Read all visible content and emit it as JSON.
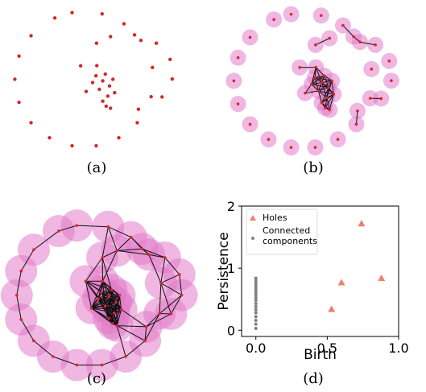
{
  "panels": {
    "a": {
      "caption": "(a)"
    },
    "b": {
      "caption": "(b)"
    },
    "c": {
      "caption": "(c)"
    },
    "d": {
      "caption": "(d)"
    }
  },
  "colors": {
    "point": "#d62728",
    "ball": "#e27bc8",
    "edge": "#111111",
    "hole": "#f0806a",
    "component": "#808080"
  },
  "point_cloud": [
    [
      32,
      38
    ],
    [
      53,
      19
    ],
    [
      79,
      10
    ],
    [
      106,
      7
    ],
    [
      127,
      13
    ],
    [
      143,
      18
    ],
    [
      151,
      23
    ],
    [
      160,
      40
    ],
    [
      151,
      27
    ],
    [
      33,
      23
    ]
  ],
  "chart_data": {
    "type": "scatter",
    "title": "",
    "xlabel": "Birth",
    "ylabel": "Persistence",
    "xlim": [
      -0.1,
      1.0
    ],
    "ylim": [
      -0.1,
      2.0
    ],
    "xticks": [
      "0.0",
      "0.5",
      "1.0"
    ],
    "yticks": [
      "0",
      "1",
      "2"
    ],
    "grid": false,
    "legend_position": "top-left",
    "series": [
      {
        "name": "Holes",
        "marker": "triangle",
        "points": [
          [
            0.53,
            0.34
          ],
          [
            0.6,
            0.77
          ],
          [
            0.74,
            1.72
          ],
          [
            0.88,
            0.84
          ]
        ]
      },
      {
        "name": "Connected components",
        "marker": "circle",
        "points": [
          [
            0.0,
            0.03
          ],
          [
            0.0,
            0.1
          ],
          [
            0.0,
            0.16
          ],
          [
            0.0,
            0.22
          ],
          [
            0.0,
            0.28
          ],
          [
            0.0,
            0.33
          ],
          [
            0.0,
            0.38
          ],
          [
            0.0,
            0.43
          ],
          [
            0.0,
            0.48
          ],
          [
            0.0,
            0.52
          ],
          [
            0.0,
            0.56
          ],
          [
            0.0,
            0.6
          ],
          [
            0.0,
            0.64
          ],
          [
            0.0,
            0.68
          ],
          [
            0.0,
            0.72
          ],
          [
            0.0,
            0.76
          ],
          [
            0.0,
            0.8
          ],
          [
            0.0,
            0.84
          ]
        ]
      }
    ]
  }
}
